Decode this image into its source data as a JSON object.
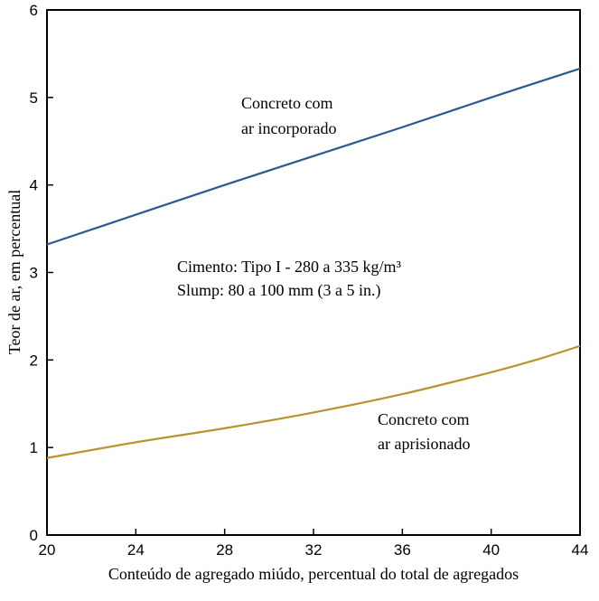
{
  "chart_data": {
    "type": "line",
    "xlabel": "Conteúdo de agregado miúdo, percentual do total de agregados",
    "ylabel": "Teor de ar, em percentual",
    "xlim": [
      20,
      44
    ],
    "ylim": [
      0,
      6
    ],
    "xticks": [
      20,
      24,
      28,
      32,
      36,
      40,
      44
    ],
    "yticks": [
      0,
      1,
      2,
      3,
      4,
      5,
      6
    ],
    "grid": false,
    "series": [
      {
        "name": "Concreto com ar incorporado",
        "color": "#2d5a8e",
        "x": [
          20,
          24,
          28,
          32,
          36,
          40,
          44
        ],
        "y": [
          3.32,
          3.66,
          4.0,
          4.33,
          4.66,
          5.0,
          5.33
        ]
      },
      {
        "name": "Concreto com ar aprisionado",
        "color": "#b8942e",
        "x": [
          20,
          24,
          28,
          32,
          36,
          40,
          42,
          44
        ],
        "y": [
          0.88,
          1.06,
          1.22,
          1.4,
          1.61,
          1.86,
          2.0,
          2.16
        ]
      }
    ],
    "annotations": [
      {
        "lines": [
          "Concreto com",
          "ar incorporado"
        ]
      },
      {
        "lines": [
          "Cimento: Tipo I - 280 a 335 kg/m³",
          "Slump: 80 a 100 mm (3 a 5 in.)"
        ]
      },
      {
        "lines": [
          "Concreto com",
          "ar aprisionado"
        ]
      }
    ]
  }
}
